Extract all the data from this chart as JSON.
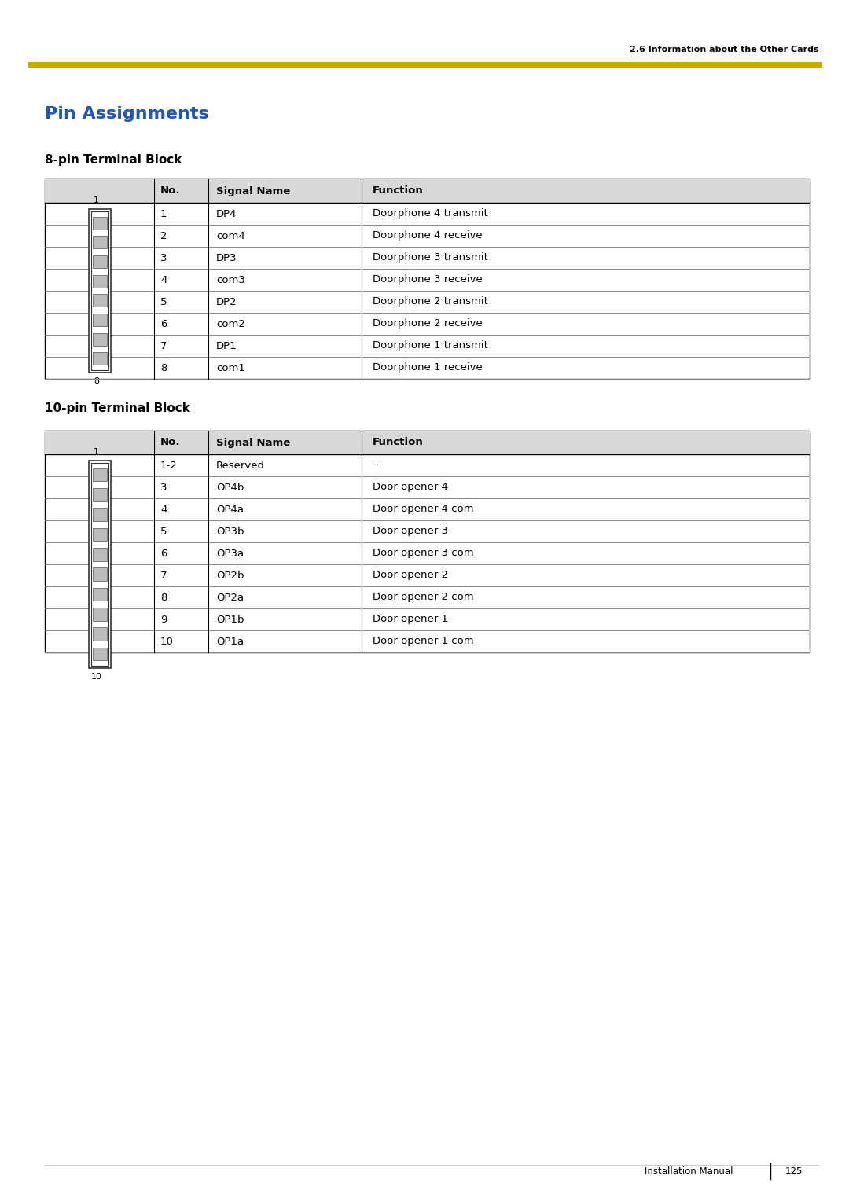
{
  "page_width": 10.8,
  "page_height": 15.28,
  "bg_color": "#ffffff",
  "header_text": "2.6 Information about the Other Cards",
  "header_line_color": "#c8a800",
  "title": "Pin Assignments",
  "title_color": "#2255bb",
  "section1_title": "8-pin Terminal Block",
  "section2_title": "10-pin Terminal Block",
  "table1_headers": [
    "No.",
    "Signal Name",
    "Function"
  ],
  "table1_rows": [
    [
      "1",
      "DP4",
      "Doorphone 4 transmit"
    ],
    [
      "2",
      "com4",
      "Doorphone 4 receive"
    ],
    [
      "3",
      "DP3",
      "Doorphone 3 transmit"
    ],
    [
      "4",
      "com3",
      "Doorphone 3 receive"
    ],
    [
      "5",
      "DP2",
      "Doorphone 2 transmit"
    ],
    [
      "6",
      "com2",
      "Doorphone 2 receive"
    ],
    [
      "7",
      "DP1",
      "Doorphone 1 transmit"
    ],
    [
      "8",
      "com1",
      "Doorphone 1 receive"
    ]
  ],
  "table2_headers": [
    "No.",
    "Signal Name",
    "Function"
  ],
  "table2_rows": [
    [
      "1-2",
      "Reserved",
      "–"
    ],
    [
      "3",
      "OP4b",
      "Door opener 4"
    ],
    [
      "4",
      "OP4a",
      "Door opener 4 com"
    ],
    [
      "5",
      "OP3b",
      "Door opener 3"
    ],
    [
      "6",
      "OP3a",
      "Door opener 3 com"
    ],
    [
      "7",
      "OP2b",
      "Door opener 2"
    ],
    [
      "8",
      "OP2a",
      "Door opener 2 com"
    ],
    [
      "9",
      "OP1b",
      "Door opener 1"
    ],
    [
      "10",
      "OP1a",
      "Door opener 1 com"
    ]
  ],
  "footer_text": "Installation Manual",
  "footer_page": "125",
  "table_border_color": "#000000",
  "header_bg_color": "#d8d8d8",
  "text_color": "#000000"
}
